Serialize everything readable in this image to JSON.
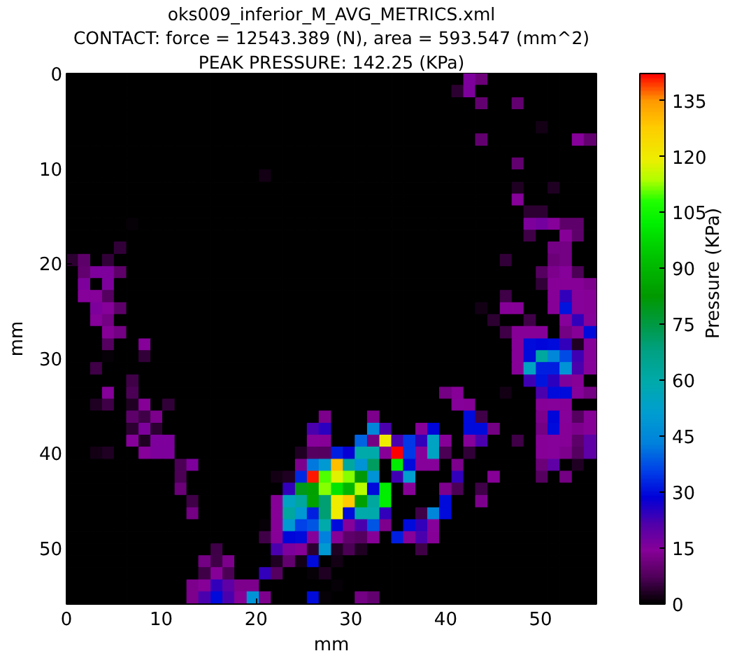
{
  "chart_data": {
    "type": "heatmap",
    "title": "oks009_inferior_M_AVG_METRICS.xml",
    "subtitle": "CONTACT: force = 12543.389 (N), area = 593.547 (mm^2)",
    "annotations": [
      "PEAK PRESSURE: 142.25 (KPa)"
    ],
    "xlabel": "mm",
    "ylabel": "mm",
    "clabel": "Pressure (KPa)",
    "xlim": [
      0,
      55.9
    ],
    "ylim": [
      55.9,
      0
    ],
    "xticks": [
      0,
      10,
      20,
      30,
      40,
      50
    ],
    "yticks": [
      0,
      10,
      20,
      30,
      40,
      50
    ],
    "clim": [
      0,
      142.25
    ],
    "cticks": [
      0,
      15,
      30,
      45,
      60,
      75,
      90,
      105,
      120,
      135
    ],
    "x": [
      0.6,
      1.9,
      3.2,
      4.4,
      5.7,
      7.0,
      8.3,
      9.5,
      10.8,
      12.1,
      13.3,
      14.6,
      15.9,
      17.1,
      18.4,
      19.7,
      21.0,
      22.2,
      23.5,
      24.8,
      26.0,
      27.3,
      28.6,
      29.8,
      31.1,
      32.4,
      33.7,
      34.9,
      36.2,
      37.5,
      38.7,
      40.0,
      41.3,
      42.5,
      43.8,
      45.1,
      46.4,
      47.6,
      48.9,
      50.2,
      51.4,
      52.7,
      54.0,
      55.2
    ],
    "y": [
      0.6,
      1.9,
      3.2,
      4.4,
      5.7,
      7.0,
      8.3,
      9.5,
      10.8,
      12.1,
      13.3,
      14.6,
      15.9,
      17.1,
      18.4,
      19.7,
      21.0,
      22.2,
      23.5,
      24.8,
      26.0,
      27.3,
      28.6,
      29.8,
      31.1,
      32.4,
      33.7,
      34.9,
      36.2,
      37.5,
      38.7,
      40.0,
      41.3,
      42.5,
      43.8,
      45.1,
      46.4,
      47.6,
      48.9,
      50.2,
      51.4,
      52.7,
      54.0,
      55.2
    ],
    "cells": [
      [
        0,
        0,
        0,
        0,
        0,
        0,
        0,
        0,
        0,
        0,
        0,
        0,
        0,
        0,
        0,
        0,
        0,
        0,
        0,
        0,
        0,
        0,
        0,
        0,
        0,
        0,
        0,
        0,
        0,
        0,
        0,
        0,
        0,
        16,
        11,
        0,
        0,
        0,
        0,
        0,
        0,
        0,
        0,
        0
      ],
      [
        0,
        0,
        0,
        0,
        0,
        0,
        0,
        0,
        0,
        0,
        0,
        0,
        0,
        0,
        0,
        0,
        0,
        0,
        0,
        0,
        0,
        0,
        0,
        0,
        0,
        0,
        0,
        0,
        0,
        0,
        0,
        0,
        4,
        16,
        0,
        0,
        0,
        0,
        0,
        0,
        0,
        0,
        0,
        0
      ],
      [
        0,
        0,
        0,
        0,
        0,
        0,
        0,
        0,
        0,
        0,
        0,
        0,
        0,
        0,
        0,
        0,
        0,
        0,
        0,
        0,
        0,
        0,
        0,
        0,
        0,
        0,
        0,
        0,
        0,
        0,
        0,
        0,
        0,
        0,
        10,
        0,
        0,
        10,
        0,
        0,
        0,
        0,
        0,
        0
      ],
      [
        0,
        0,
        0,
        0,
        0,
        0,
        0,
        0,
        0,
        0,
        0,
        0,
        0,
        0,
        0,
        0,
        0,
        0,
        0,
        0,
        0,
        0,
        0,
        0,
        0,
        0,
        0,
        0,
        0,
        0,
        0,
        0,
        0,
        0,
        0,
        0,
        0,
        0,
        0,
        0,
        0,
        0,
        0,
        0
      ],
      [
        0,
        0,
        0,
        0,
        0,
        0,
        0,
        0,
        0,
        0,
        0,
        0,
        0,
        0,
        0,
        0,
        0,
        0,
        0,
        0,
        0,
        0,
        0,
        0,
        0,
        0,
        0,
        0,
        0,
        0,
        0,
        0,
        0,
        0,
        0,
        0,
        0,
        0,
        0,
        2,
        0,
        0,
        0,
        0
      ],
      [
        0,
        0,
        0,
        0,
        0,
        0,
        0,
        0,
        0,
        0,
        0,
        0,
        0,
        0,
        0,
        0,
        0,
        0,
        0,
        0,
        0,
        0,
        0,
        0,
        0,
        0,
        0,
        0,
        0,
        0,
        0,
        0,
        0,
        0,
        10,
        0,
        0,
        0,
        0,
        0,
        0,
        0,
        15,
        10
      ],
      [
        0,
        0,
        0,
        0,
        0,
        0,
        0,
        0,
        0,
        0,
        0,
        0,
        0,
        0,
        0,
        0,
        0,
        0,
        0,
        0,
        0,
        0,
        0,
        0,
        0,
        0,
        0,
        0,
        0,
        0,
        0,
        0,
        0,
        0,
        0,
        0,
        0,
        0,
        0,
        0,
        0,
        0,
        0,
        0
      ],
      [
        0,
        0,
        0,
        0,
        0,
        0,
        0,
        0,
        0,
        0,
        0,
        0,
        0,
        0,
        0,
        0,
        0,
        0,
        0,
        0,
        0,
        0,
        0,
        0,
        0,
        0,
        0,
        0,
        0,
        0,
        0,
        0,
        0,
        0,
        0,
        0,
        0,
        10,
        0,
        0,
        0,
        0,
        0,
        0
      ],
      [
        0,
        0,
        0,
        0,
        0,
        0,
        0,
        0,
        0,
        0,
        0,
        0,
        0,
        0,
        0,
        0,
        2,
        0,
        0,
        0,
        0,
        0,
        0,
        0,
        0,
        0,
        0,
        0,
        0,
        0,
        0,
        0,
        0,
        0,
        0,
        0,
        0,
        0,
        0,
        0,
        0,
        0,
        0,
        0
      ],
      [
        0,
        0,
        0,
        0,
        0,
        0,
        0,
        0,
        0,
        0,
        0,
        0,
        0,
        0,
        0,
        0,
        0,
        0,
        0,
        0,
        0,
        0,
        0,
        0,
        0,
        0,
        0,
        0,
        0,
        0,
        0,
        0,
        0,
        0,
        0,
        0,
        0,
        3,
        0,
        0,
        3,
        0,
        0,
        0
      ],
      [
        0,
        0,
        0,
        0,
        0,
        0,
        0,
        0,
        0,
        0,
        0,
        0,
        0,
        0,
        0,
        0,
        0,
        0,
        0,
        0,
        0,
        0,
        0,
        0,
        0,
        0,
        0,
        0,
        0,
        0,
        0,
        0,
        0,
        0,
        0,
        0,
        0,
        15,
        0,
        0,
        0,
        0,
        0,
        0
      ],
      [
        0,
        0,
        0,
        0,
        0,
        0,
        0,
        0,
        0,
        0,
        0,
        0,
        0,
        0,
        0,
        0,
        0,
        0,
        0,
        0,
        0,
        0,
        0,
        0,
        0,
        0,
        0,
        0,
        0,
        0,
        0,
        0,
        0,
        0,
        0,
        0,
        0,
        0,
        4,
        4,
        0,
        0,
        0,
        0
      ],
      [
        0,
        0,
        0,
        0,
        0,
        1,
        0,
        0,
        0,
        0,
        0,
        0,
        0,
        0,
        0,
        0,
        0,
        0,
        0,
        0,
        0,
        0,
        0,
        0,
        0,
        0,
        0,
        0,
        0,
        0,
        0,
        0,
        0,
        0,
        0,
        0,
        0,
        0,
        16,
        17,
        15,
        9,
        9,
        0
      ],
      [
        0,
        0,
        0,
        0,
        0,
        0,
        0,
        0,
        0,
        0,
        0,
        0,
        0,
        0,
        0,
        0,
        0,
        0,
        0,
        0,
        0,
        0,
        0,
        0,
        0,
        0,
        0,
        0,
        0,
        0,
        0,
        0,
        0,
        0,
        0,
        0,
        0,
        0,
        6,
        0,
        0,
        14,
        9,
        0
      ],
      [
        0,
        0,
        0,
        0,
        5,
        0,
        0,
        0,
        0,
        0,
        0,
        0,
        0,
        0,
        0,
        0,
        0,
        0,
        0,
        0,
        0,
        0,
        0,
        0,
        0,
        0,
        0,
        0,
        0,
        0,
        0,
        0,
        0,
        0,
        0,
        0,
        0,
        0,
        0,
        0,
        12,
        12,
        0,
        0
      ],
      [
        4,
        9,
        0,
        5,
        0,
        0,
        0,
        0,
        0,
        0,
        0,
        0,
        0,
        0,
        0,
        0,
        0,
        0,
        0,
        0,
        0,
        0,
        0,
        0,
        0,
        0,
        0,
        0,
        0,
        0,
        0,
        0,
        0,
        0,
        0,
        0,
        5,
        0,
        0,
        0,
        11,
        12,
        0,
        0
      ],
      [
        0,
        10,
        16,
        16,
        9,
        0,
        0,
        0,
        0,
        0,
        0,
        0,
        0,
        0,
        0,
        0,
        0,
        0,
        0,
        0,
        0,
        0,
        0,
        0,
        0,
        0,
        0,
        0,
        0,
        0,
        0,
        0,
        0,
        0,
        0,
        0,
        0,
        0,
        0,
        8,
        13,
        15,
        7,
        0
      ],
      [
        0,
        16,
        0,
        16,
        0,
        0,
        0,
        0,
        0,
        0,
        0,
        0,
        0,
        0,
        0,
        0,
        0,
        0,
        0,
        0,
        0,
        0,
        0,
        0,
        0,
        0,
        0,
        0,
        0,
        0,
        0,
        0,
        0,
        0,
        0,
        0,
        0,
        0,
        0,
        5,
        14,
        14,
        14,
        13
      ],
      [
        0,
        15,
        15,
        8,
        0,
        0,
        0,
        0,
        0,
        0,
        0,
        0,
        0,
        0,
        0,
        0,
        0,
        0,
        0,
        0,
        0,
        0,
        0,
        0,
        0,
        0,
        0,
        0,
        0,
        0,
        0,
        0,
        0,
        0,
        0,
        0,
        6,
        0,
        0,
        0,
        14,
        24,
        15,
        14
      ],
      [
        0,
        0,
        16,
        15,
        9,
        0,
        0,
        0,
        0,
        0,
        0,
        0,
        0,
        0,
        0,
        0,
        0,
        0,
        0,
        0,
        0,
        0,
        0,
        0,
        0,
        0,
        0,
        0,
        0,
        0,
        0,
        0,
        0,
        0,
        2,
        0,
        14,
        14,
        0,
        0,
        14,
        31,
        15,
        14
      ],
      [
        0,
        0,
        15,
        12,
        0,
        0,
        0,
        0,
        0,
        0,
        0,
        0,
        0,
        0,
        0,
        0,
        0,
        0,
        0,
        0,
        0,
        0,
        0,
        0,
        0,
        0,
        0,
        0,
        0,
        0,
        0,
        0,
        0,
        0,
        0,
        4,
        0,
        0,
        6,
        0,
        0,
        15,
        24,
        15
      ],
      [
        0,
        0,
        0,
        14,
        12,
        0,
        0,
        0,
        0,
        0,
        0,
        0,
        0,
        0,
        0,
        0,
        0,
        0,
        0,
        0,
        0,
        0,
        0,
        0,
        0,
        0,
        0,
        0,
        0,
        0,
        0,
        0,
        0,
        0,
        0,
        0,
        6,
        14,
        14,
        14,
        0,
        12,
        14,
        30
      ],
      [
        0,
        0,
        0,
        8,
        0,
        0,
        15,
        0,
        0,
        0,
        0,
        0,
        0,
        0,
        0,
        0,
        0,
        0,
        0,
        0,
        0,
        0,
        0,
        0,
        0,
        0,
        0,
        0,
        0,
        0,
        0,
        0,
        0,
        0,
        0,
        0,
        0,
        14,
        30,
        29,
        30,
        24,
        3,
        15
      ],
      [
        0,
        0,
        0,
        1,
        0,
        0,
        5,
        0,
        0,
        0,
        0,
        0,
        0,
        0,
        0,
        0,
        0,
        0,
        0,
        0,
        0,
        0,
        0,
        0,
        0,
        0,
        0,
        0,
        0,
        0,
        0,
        0,
        0,
        0,
        0,
        0,
        0,
        14,
        30,
        62,
        45,
        37,
        23,
        15
      ],
      [
        0,
        0,
        6,
        0,
        0,
        0,
        0,
        0,
        0,
        0,
        0,
        0,
        0,
        0,
        0,
        0,
        0,
        0,
        0,
        0,
        0,
        0,
        0,
        0,
        0,
        0,
        0,
        0,
        0,
        0,
        0,
        0,
        0,
        0,
        0,
        0,
        0,
        14,
        55,
        32,
        32,
        48,
        22,
        15
      ],
      [
        0,
        0,
        0,
        0,
        0,
        6,
        0,
        0,
        0,
        0,
        0,
        0,
        0,
        0,
        0,
        0,
        0,
        0,
        0,
        0,
        0,
        0,
        0,
        0,
        0,
        0,
        0,
        0,
        0,
        0,
        0,
        0,
        0,
        0,
        0,
        0,
        0,
        0,
        23,
        31,
        25,
        16,
        14,
        0
      ],
      [
        0,
        0,
        0,
        15,
        0,
        7,
        0,
        0,
        0,
        0,
        0,
        0,
        0,
        0,
        0,
        0,
        0,
        0,
        0,
        0,
        0,
        0,
        0,
        0,
        0,
        0,
        0,
        0,
        0,
        0,
        0,
        12,
        14,
        0,
        0,
        0,
        2,
        0,
        0,
        22,
        30,
        30,
        15,
        12
      ],
      [
        0,
        0,
        3,
        6,
        0,
        3,
        14,
        0,
        5,
        0,
        0,
        0,
        0,
        0,
        0,
        0,
        0,
        0,
        0,
        0,
        0,
        0,
        0,
        0,
        0,
        0,
        0,
        0,
        0,
        0,
        0,
        0,
        15,
        14,
        0,
        0,
        0,
        0,
        0,
        14,
        15,
        14,
        0,
        0
      ],
      [
        0,
        0,
        0,
        0,
        0,
        9,
        6,
        13,
        0,
        0,
        0,
        0,
        0,
        0,
        0,
        0,
        0,
        0,
        0,
        0,
        0,
        13,
        0,
        0,
        0,
        13,
        0,
        0,
        0,
        0,
        0,
        0,
        0,
        30,
        6,
        0,
        0,
        0,
        0,
        13,
        29,
        15,
        8,
        14
      ],
      [
        0,
        0,
        0,
        0,
        0,
        4,
        16,
        4,
        0,
        0,
        0,
        0,
        0,
        0,
        0,
        0,
        0,
        0,
        0,
        0,
        22,
        25,
        0,
        0,
        0,
        45,
        22,
        0,
        0,
        14,
        29,
        0,
        0,
        30,
        30,
        12,
        0,
        0,
        0,
        12,
        30,
        14,
        13,
        14
      ],
      [
        0,
        0,
        0,
        0,
        0,
        15,
        3,
        16,
        16,
        0,
        0,
        0,
        0,
        0,
        0,
        0,
        0,
        0,
        0,
        0,
        15,
        14,
        0,
        0,
        40,
        12,
        120,
        22,
        35,
        24,
        55,
        14,
        0,
        15,
        22,
        0,
        0,
        6,
        0,
        14,
        15,
        14,
        9,
        20
      ],
      [
        0,
        0,
        2,
        3,
        0,
        0,
        15,
        16,
        16,
        0,
        0,
        0,
        0,
        0,
        0,
        0,
        0,
        0,
        0,
        3,
        8,
        8,
        32,
        28,
        60,
        60,
        14,
        142,
        35,
        15,
        55,
        7,
        0,
        5,
        0,
        0,
        0,
        0,
        0,
        14,
        15,
        13,
        8,
        20
      ],
      [
        0,
        0,
        0,
        0,
        0,
        0,
        0,
        0,
        0,
        7,
        16,
        0,
        0,
        0,
        0,
        0,
        0,
        0,
        0,
        13,
        42,
        50,
        130,
        62,
        48,
        72,
        0,
        102,
        30,
        15,
        15,
        0,
        13,
        0,
        0,
        0,
        0,
        0,
        0,
        11,
        20,
        0,
        3,
        0
      ],
      [
        0,
        0,
        0,
        0,
        0,
        0,
        0,
        0,
        0,
        7,
        0,
        0,
        0,
        0,
        0,
        0,
        0,
        2,
        3,
        33,
        141,
        110,
        118,
        112,
        82,
        48,
        0,
        23,
        52,
        0,
        0,
        0,
        24,
        0,
        0,
        14,
        0,
        0,
        0,
        8,
        0,
        12,
        0,
        0
      ],
      [
        0,
        0,
        0,
        0,
        0,
        0,
        0,
        0,
        0,
        11,
        0,
        0,
        0,
        0,
        0,
        0,
        0,
        0,
        24,
        80,
        84,
        112,
        100,
        90,
        114,
        30,
        102,
        0,
        14,
        0,
        0,
        13,
        7,
        0,
        6,
        0,
        0,
        0,
        0,
        0,
        0,
        0,
        0,
        0
      ],
      [
        0,
        0,
        0,
        0,
        0,
        0,
        0,
        0,
        0,
        0,
        6,
        0,
        0,
        0,
        0,
        0,
        0,
        14,
        55,
        62,
        85,
        70,
        120,
        128,
        84,
        62,
        102,
        0,
        0,
        0,
        0,
        30,
        0,
        0,
        13,
        0,
        0,
        0,
        0,
        0,
        0,
        0,
        0,
        0
      ],
      [
        0,
        0,
        0,
        0,
        0,
        0,
        0,
        0,
        0,
        0,
        12,
        0,
        0,
        0,
        0,
        0,
        0,
        14,
        62,
        50,
        32,
        70,
        120,
        30,
        60,
        60,
        24,
        0,
        0,
        6,
        45,
        30,
        0,
        0,
        0,
        0,
        0,
        0,
        0,
        0,
        0,
        0,
        0,
        0
      ],
      [
        0,
        0,
        0,
        0,
        0,
        0,
        0,
        0,
        0,
        0,
        0,
        0,
        0,
        0,
        0,
        0,
        1,
        14,
        50,
        36,
        38,
        60,
        30,
        15,
        22,
        38,
        13,
        0,
        30,
        24,
        15,
        0,
        0,
        0,
        0,
        0,
        0,
        0,
        0,
        0,
        0,
        0,
        0,
        0
      ],
      [
        0,
        0,
        0,
        0,
        0,
        0,
        0,
        0,
        0,
        0,
        0,
        0,
        0,
        0,
        0,
        0,
        6,
        14,
        29,
        30,
        15,
        43,
        14,
        9,
        8,
        14,
        0,
        32,
        15,
        22,
        14,
        0,
        0,
        0,
        0,
        0,
        0,
        0,
        0,
        0,
        0,
        0,
        0,
        0
      ],
      [
        0,
        0,
        0,
        0,
        0,
        0,
        0,
        0,
        0,
        0,
        0,
        0,
        6,
        0,
        0,
        0,
        0,
        22,
        16,
        14,
        4,
        50,
        3,
        7,
        3,
        0,
        0,
        0,
        0,
        6,
        0,
        0,
        0,
        0,
        0,
        0,
        0,
        0,
        0,
        0,
        0,
        0,
        0,
        0
      ],
      [
        0,
        0,
        0,
        0,
        0,
        0,
        0,
        0,
        0,
        0,
        0,
        12,
        6,
        13,
        0,
        0,
        0,
        3,
        10,
        2,
        30,
        0,
        2,
        0,
        0,
        0,
        0,
        0,
        0,
        0,
        0,
        0,
        0,
        0,
        0,
        0,
        0,
        0,
        0,
        0,
        0,
        0,
        0,
        0
      ],
      [
        0,
        0,
        0,
        0,
        0,
        0,
        0,
        0,
        0,
        0,
        0,
        6,
        14,
        7,
        0,
        0,
        24,
        8,
        0,
        0,
        1,
        3,
        0,
        0,
        0,
        0,
        0,
        0,
        0,
        0,
        0,
        0,
        0,
        0,
        0,
        0,
        0,
        0,
        0,
        0,
        0,
        0,
        0,
        0
      ],
      [
        0,
        0,
        0,
        0,
        0,
        0,
        0,
        0,
        0,
        0,
        13,
        14,
        24,
        20,
        13,
        13,
        0,
        0,
        0,
        0,
        0,
        0,
        1,
        0,
        0,
        0,
        0,
        0,
        0,
        0,
        0,
        0,
        0,
        0,
        0,
        0,
        0,
        0,
        0,
        0,
        0,
        0,
        0,
        0
      ],
      [
        0,
        0,
        0,
        0,
        0,
        0,
        0,
        0,
        0,
        0,
        13,
        22,
        30,
        22,
        14,
        48,
        13,
        0,
        0,
        0,
        30,
        1,
        0,
        0,
        12,
        10,
        0,
        0,
        0,
        0,
        0,
        0,
        0,
        0,
        0,
        0,
        0,
        0,
        0,
        0,
        0,
        0,
        0,
        0
      ]
    ]
  }
}
